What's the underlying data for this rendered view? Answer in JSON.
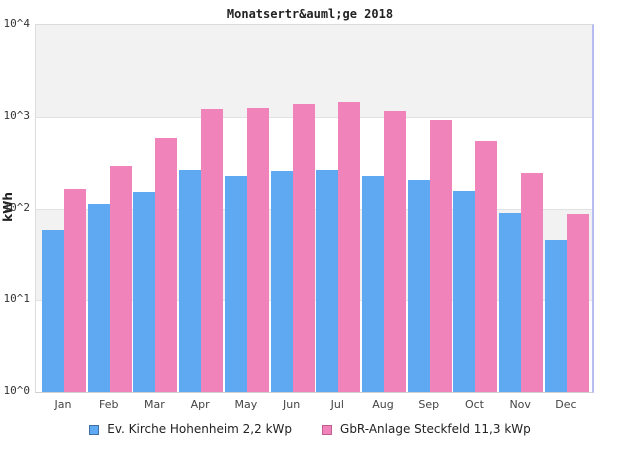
{
  "title": "Monatsertr&auml;ge 2018",
  "y_axis": {
    "label": "kWh",
    "ticks": [
      "10^4",
      "10^3",
      "10^2",
      "10^1",
      "10^0"
    ]
  },
  "x_axis": {
    "months": [
      "Jan",
      "Feb",
      "Mar",
      "Apr",
      "May",
      "Jun",
      "Jul",
      "Aug",
      "Sep",
      "Oct",
      "Nov",
      "Dec"
    ]
  },
  "legend": [
    {
      "label": "Ev. Kirche Hohenheim 2,2 kWp",
      "color": "#5fa8f2",
      "border": "#3e6fa5"
    },
    {
      "label": "GbR-Anlage Steckfeld 11,3 kWp",
      "color": "#f083ba",
      "border": "#c05e91"
    }
  ],
  "colors": {
    "band_gray": "#f2f2f2",
    "gridline": "#e2e2e2",
    "plot_border": "#dcdcdc",
    "plot_border_right": "#b7bdf2"
  },
  "chart_data": {
    "type": "bar",
    "title": "Monatsertr&auml;ge 2018",
    "xlabel": "",
    "ylabel": "kWh",
    "yscale": "log",
    "ylim": [
      1,
      10000
    ],
    "grid": "horizontal-decades",
    "legend_position": "bottom",
    "categories": [
      "Jan",
      "Feb",
      "Mar",
      "Apr",
      "May",
      "Jun",
      "Jul",
      "Aug",
      "Sep",
      "Oct",
      "Nov",
      "Dec"
    ],
    "series": [
      {
        "name": "Ev. Kirche Hohenheim 2,2 kWp",
        "color": "#5fa8f2",
        "values": [
          59,
          112,
          151,
          260,
          225,
          255,
          264,
          225,
          203,
          154,
          90,
          45
        ]
      },
      {
        "name": "GbR-Anlage Steckfeld 11,3 kWp",
        "color": "#f083ba",
        "values": [
          163,
          290,
          583,
          1213,
          1245,
          1390,
          1450,
          1164,
          920,
          545,
          244,
          87
        ]
      }
    ]
  }
}
